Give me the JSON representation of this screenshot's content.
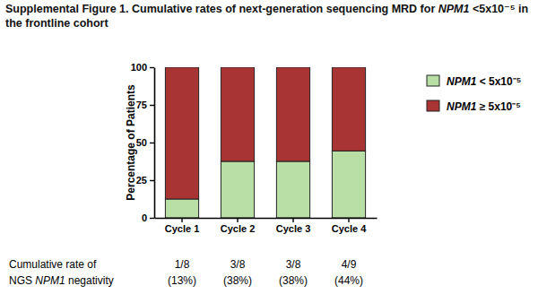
{
  "chart_data": {
    "type": "bar",
    "title": "Supplemental Figure 1. Cumulative rates of next-generation sequencing MRD for NPM1 <5x10⁻⁵ in the frontline cohort",
    "y_label": "Percentage of Patients",
    "categories": [
      "Cycle 1",
      "Cycle 2",
      "Cycle 3",
      "Cycle 4"
    ],
    "series": [
      {
        "name": "NPM1 < 5x10⁻⁵",
        "color": "#b9dea6",
        "values": [
          12.5,
          37.5,
          37.5,
          44.4
        ]
      },
      {
        "name": "NPM1 ≥ 5x10⁻⁵",
        "color": "#a83434",
        "values": [
          87.5,
          62.5,
          62.5,
          55.6
        ]
      }
    ],
    "stacked": true,
    "legend": "right",
    "ylim": [
      0,
      100
    ],
    "yticks": [
      0,
      25,
      50,
      75,
      100
    ],
    "annotations": {
      "row_title": [
        "Cumulative rate of",
        "NGS NPM1 negativity"
      ],
      "counts": [
        "1/8",
        "3/8",
        "3/8",
        "4/9"
      ],
      "percents": [
        "(13%)",
        "(38%)",
        "(38%)",
        "(44%)"
      ]
    }
  }
}
